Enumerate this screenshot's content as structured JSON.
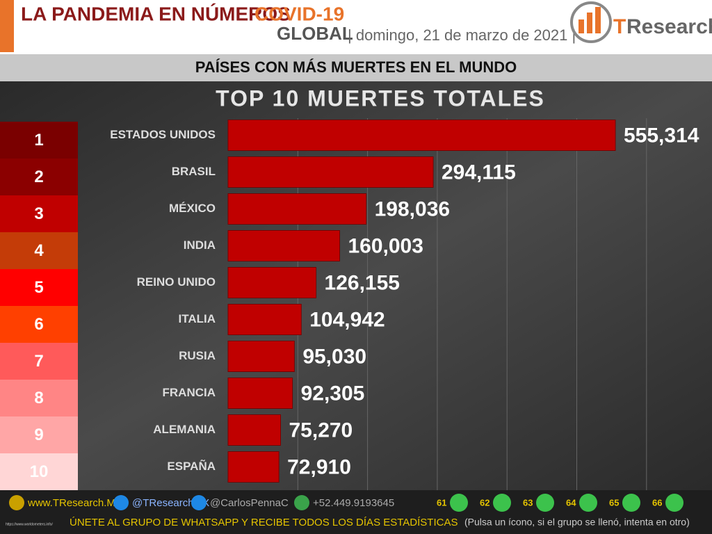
{
  "header": {
    "title": "LA PANDEMIA EN NÚMEROS",
    "highlight": "COVID-19",
    "scope": "GLOBAL",
    "date": "| domingo, 21 de marzo de 2021 |",
    "logo": [
      "T",
      "Research"
    ],
    "subtitle": "PAÍSES CON MÁS MUERTES EN EL MUNDO"
  },
  "chart_data": {
    "type": "bar",
    "orientation": "horizontal",
    "title": "TOP 10 MUERTES TOTALES",
    "ranks": [
      1,
      2,
      3,
      4,
      5,
      6,
      7,
      8,
      9,
      10
    ],
    "rank_colors": [
      "#7a0000",
      "#8b0000",
      "#c00000",
      "#c43c08",
      "#ff0000",
      "#ff4000",
      "#ff5a5a",
      "#ff8585",
      "#ffa6a6",
      "#ffd6d6"
    ],
    "categories": [
      "ESTADOS UNIDOS",
      "BRASIL",
      "MÉXICO",
      "INDIA",
      "REINO UNIDO",
      "ITALIA",
      "RUSIA",
      "FRANCIA",
      "ALEMANIA",
      "ESPAÑA"
    ],
    "values": [
      555314,
      294115,
      198036,
      160003,
      126155,
      104942,
      95030,
      92305,
      75270,
      72910
    ],
    "value_labels": [
      "555,314",
      "294,115",
      "198,036",
      "160,003",
      "126,155",
      "104,942",
      "95,030",
      "92,305",
      "75,270",
      "72,910"
    ],
    "color": "#c00000",
    "xlim": [
      0,
      700000
    ],
    "xticks": [
      100000,
      200000,
      300000,
      400000,
      500000,
      600000
    ],
    "grid": true
  },
  "footer": {
    "links": [
      "www.TResearch.Mx",
      "@TResearchMX",
      "@CarlosPennaC",
      "+52.449.9193645"
    ],
    "groups": [
      61,
      62,
      63,
      64,
      65,
      66
    ],
    "cta": "ÚNETE AL GRUPO DE WHATSAPP Y RECIBE TODOS LOS DÍAS ESTADÍSTICAS",
    "note": "(Pulsa un ícono, si el grupo se llenó, intenta en otro)",
    "source": "https://www.worldometers.info/"
  }
}
